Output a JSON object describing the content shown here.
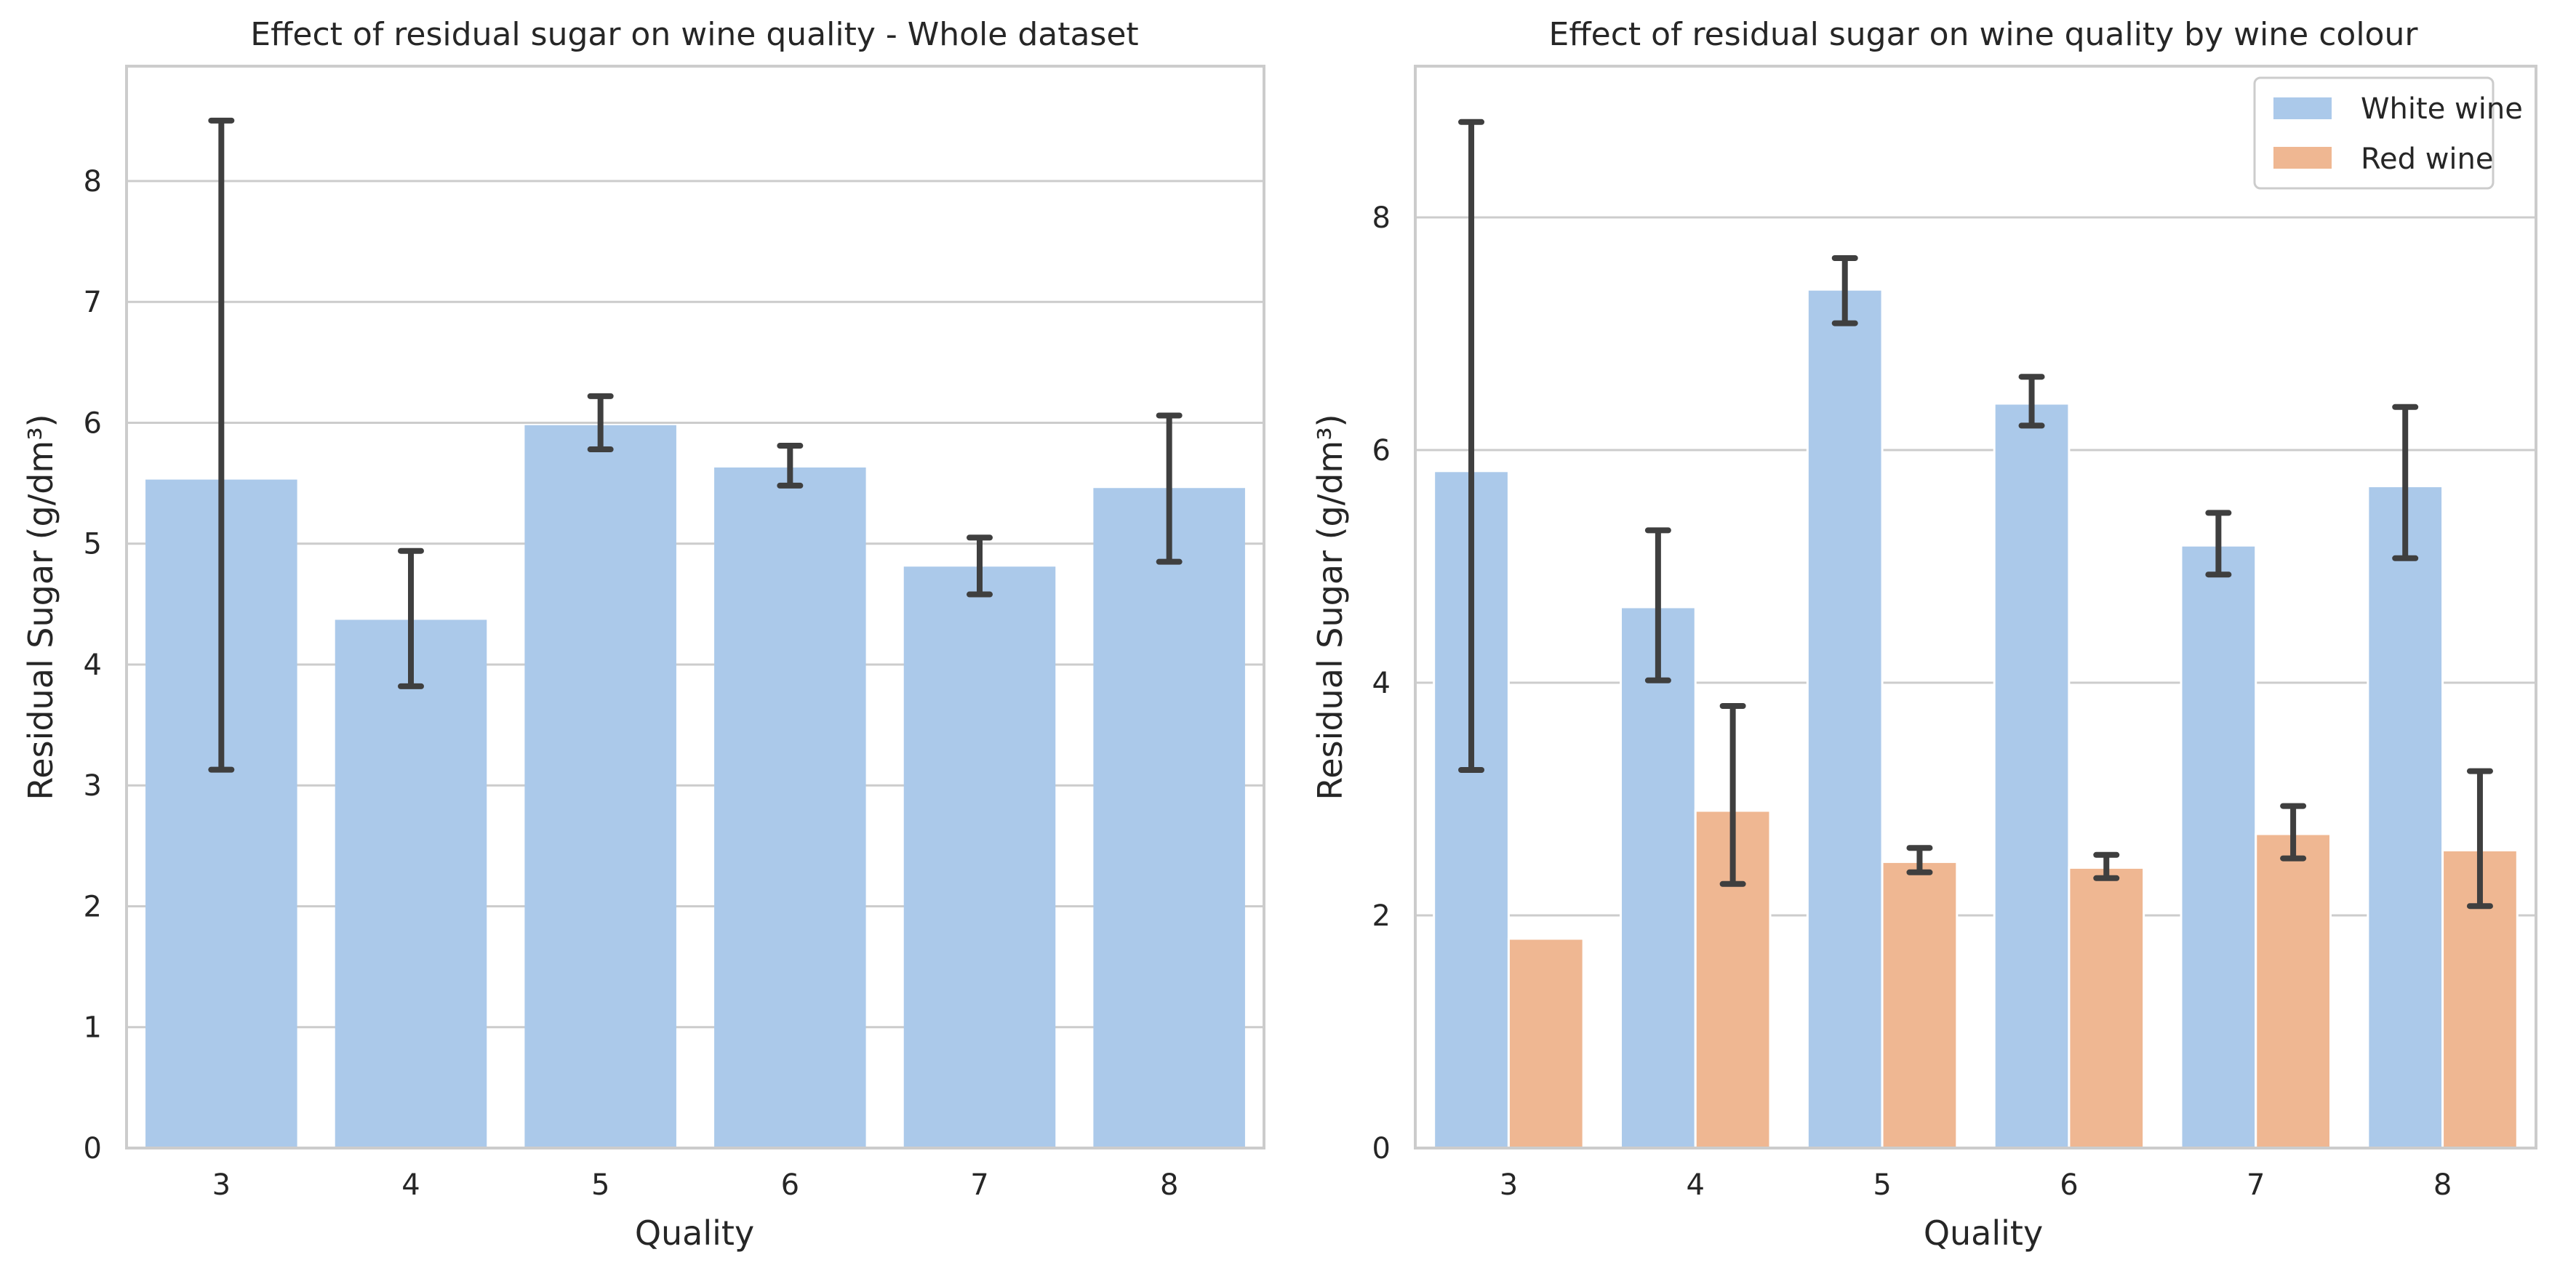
{
  "colors": {
    "white_wine": "#abc9ea",
    "red_wine": "#efb792",
    "error_bar": "#3f3f3f",
    "grid": "#cccccc",
    "spine": "#cccccc",
    "text": "#262626"
  },
  "chart_data": [
    {
      "type": "bar",
      "title": "Effect of residual sugar on wine quality - Whole dataset",
      "xlabel": "Quality",
      "ylabel": "Residual Sugar (g/dm³)",
      "categories": [
        "3",
        "4",
        "5",
        "6",
        "7",
        "8"
      ],
      "yticks": [
        0,
        1,
        2,
        3,
        4,
        5,
        6,
        7,
        8
      ],
      "ylim": [
        0,
        8.95
      ],
      "grid": true,
      "series": [
        {
          "color_key": "white_wine",
          "values": [
            5.53,
            4.37,
            5.98,
            5.63,
            4.81,
            5.46
          ],
          "err_low": [
            3.13,
            3.82,
            5.78,
            5.48,
            4.58,
            4.85
          ],
          "err_high": [
            8.5,
            4.94,
            6.22,
            5.81,
            5.05,
            6.06
          ]
        }
      ]
    },
    {
      "type": "bar",
      "title": "Effect of residual sugar on wine quality by wine colour",
      "xlabel": "Quality",
      "ylabel": "Residual Sugar (g/dm³)",
      "categories": [
        "3",
        "4",
        "5",
        "6",
        "7",
        "8"
      ],
      "yticks": [
        0,
        2,
        4,
        6,
        8
      ],
      "ylim": [
        0,
        9.3
      ],
      "grid": true,
      "legend_position": "top-right",
      "series": [
        {
          "name": "White wine",
          "color_key": "white_wine",
          "values": [
            5.82,
            4.65,
            7.38,
            6.4,
            5.18,
            5.69
          ],
          "err_low": [
            3.25,
            4.02,
            7.09,
            6.21,
            4.93,
            5.07
          ],
          "err_high": [
            8.82,
            5.31,
            7.65,
            6.63,
            5.46,
            6.37
          ]
        },
        {
          "name": "Red wine",
          "color_key": "red_wine",
          "values": [
            1.8,
            2.9,
            2.46,
            2.41,
            2.7,
            2.56
          ],
          "err_low": [
            null,
            2.27,
            2.37,
            2.32,
            2.49,
            2.08
          ],
          "err_high": [
            null,
            3.8,
            2.58,
            2.52,
            2.94,
            3.24
          ]
        }
      ]
    }
  ]
}
